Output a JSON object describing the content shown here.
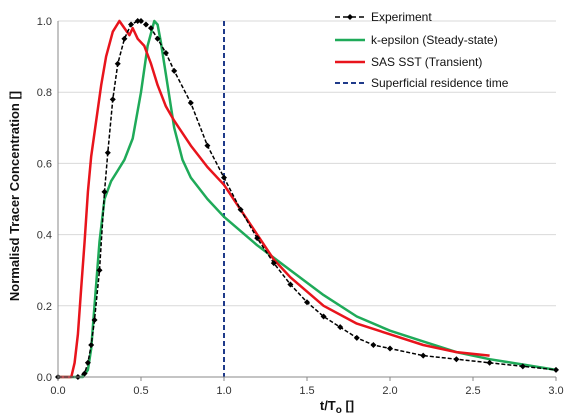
{
  "chart_data": {
    "type": "line",
    "title": "",
    "xlabel": "t/T",
    "xlabel_sub": "o",
    "xlabel_unit": " []",
    "ylabel": "Normalisd Tracer Concentration []",
    "xlim": [
      0.0,
      3.0
    ],
    "ylim": [
      0.0,
      1.0
    ],
    "xticks": [
      "0.0",
      "0.5",
      "1.0",
      "1.5",
      "2.0",
      "2.5",
      "3.0"
    ],
    "yticks": [
      "0.0",
      "0.2",
      "0.4",
      "0.6",
      "0.8",
      "1.0"
    ],
    "grid": "horizontal",
    "legend_position": "top-right",
    "colors": {
      "experiment": "#000000",
      "k_epsilon": "#1faa59",
      "sas_sst": "#e8141c",
      "residence": "#1f3a8a"
    },
    "series": [
      {
        "name": "Experiment",
        "style": "dashed-markers",
        "x": [
          0.0,
          0.12,
          0.16,
          0.18,
          0.2,
          0.22,
          0.25,
          0.28,
          0.3,
          0.33,
          0.36,
          0.4,
          0.44,
          0.48,
          0.5,
          0.53,
          0.56,
          0.6,
          0.65,
          0.7,
          0.8,
          0.9,
          1.0,
          1.1,
          1.2,
          1.3,
          1.4,
          1.5,
          1.6,
          1.7,
          1.8,
          1.9,
          2.0,
          2.2,
          2.4,
          2.6,
          2.8,
          3.0
        ],
        "y": [
          0.0,
          0.0,
          0.01,
          0.04,
          0.09,
          0.16,
          0.3,
          0.52,
          0.63,
          0.78,
          0.88,
          0.95,
          0.99,
          1.0,
          1.0,
          0.99,
          0.98,
          0.95,
          0.91,
          0.86,
          0.77,
          0.65,
          0.56,
          0.47,
          0.39,
          0.32,
          0.26,
          0.21,
          0.17,
          0.14,
          0.11,
          0.09,
          0.08,
          0.06,
          0.05,
          0.04,
          0.03,
          0.02
        ]
      },
      {
        "name": "k-epsilon (Steady-state)",
        "style": "solid",
        "x": [
          0.0,
          0.15,
          0.18,
          0.2,
          0.22,
          0.25,
          0.28,
          0.32,
          0.36,
          0.4,
          0.45,
          0.5,
          0.54,
          0.58,
          0.6,
          0.62,
          0.65,
          0.7,
          0.75,
          0.8,
          0.9,
          1.0,
          1.2,
          1.4,
          1.6,
          1.8,
          2.0,
          2.2,
          2.4,
          2.6,
          2.8,
          3.0
        ],
        "y": [
          0.0,
          0.0,
          0.02,
          0.08,
          0.2,
          0.38,
          0.5,
          0.55,
          0.58,
          0.61,
          0.67,
          0.8,
          0.93,
          1.0,
          0.99,
          0.94,
          0.85,
          0.7,
          0.61,
          0.56,
          0.5,
          0.45,
          0.37,
          0.3,
          0.23,
          0.17,
          0.13,
          0.1,
          0.07,
          0.05,
          0.035,
          0.02
        ]
      },
      {
        "name": "SAS SST (Transient)",
        "style": "solid",
        "x": [
          0.0,
          0.08,
          0.1,
          0.12,
          0.14,
          0.16,
          0.18,
          0.2,
          0.23,
          0.26,
          0.29,
          0.33,
          0.37,
          0.4,
          0.43,
          0.45,
          0.48,
          0.52,
          0.56,
          0.6,
          0.65,
          0.7,
          0.8,
          0.9,
          1.0,
          1.1,
          1.2,
          1.3,
          1.4,
          1.5,
          1.6,
          1.8,
          2.0,
          2.2,
          2.4,
          2.6
        ],
        "y": [
          0.0,
          0.0,
          0.04,
          0.12,
          0.25,
          0.38,
          0.52,
          0.62,
          0.72,
          0.82,
          0.9,
          0.97,
          1.0,
          0.98,
          0.96,
          0.98,
          0.95,
          0.93,
          0.88,
          0.82,
          0.76,
          0.72,
          0.65,
          0.59,
          0.54,
          0.47,
          0.4,
          0.33,
          0.28,
          0.24,
          0.2,
          0.15,
          0.12,
          0.09,
          0.07,
          0.06
        ]
      },
      {
        "name": "Superficial residence time",
        "style": "vertical-dashed",
        "x_value": 1.0
      }
    ]
  }
}
